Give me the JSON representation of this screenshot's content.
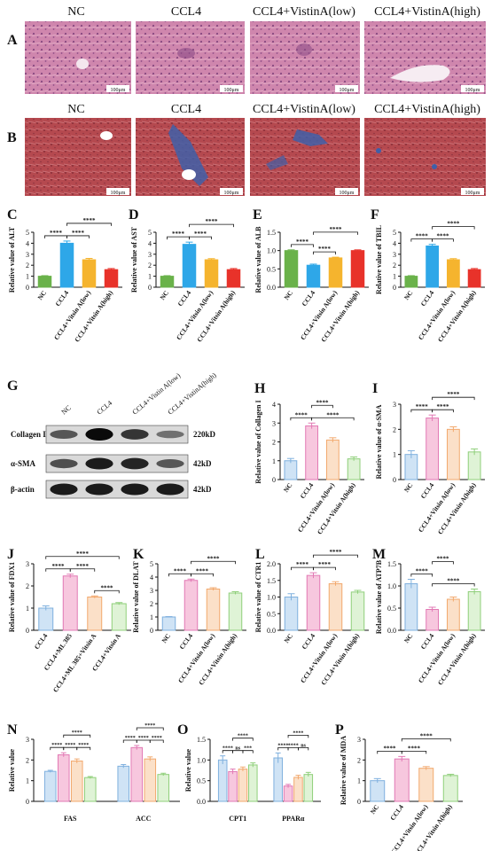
{
  "rows": {
    "A": {
      "letter": "A"
    },
    "B": {
      "letter": "B"
    },
    "micro_headers": [
      "NC",
      "CCL4",
      "CCL4+VistinA(low)",
      "CCL4+VistinA(high)"
    ],
    "scale_bar": "100μm"
  },
  "colors": {
    "he_base": "#c97aa5",
    "he_dark": "#7a3f78",
    "masson_base": "#b5494f",
    "masson_dark": "#7d2733",
    "masson_blue": "#3f5fa8",
    "green": "#6ab24a",
    "blue": "#2ea7e8",
    "yellow": "#f5b42e",
    "red": "#e8322a",
    "pink": "#f7c7de",
    "pink_edge": "#e279b4",
    "peach": "#fbe0c8",
    "peach_edge": "#f2a96e",
    "lightblue": "#cfe3f5",
    "lightblue_edge": "#7fb0de",
    "lightgreen": "#dff3d6",
    "lightgreen_edge": "#8fcf7a"
  },
  "blot": {
    "letter": "G",
    "lanes": [
      "NC",
      "CCL4",
      "CCL4+Vistin A(low)",
      "CCL4+VistinA(high)"
    ],
    "bands": [
      {
        "name": "Collagen I",
        "size": "220kD",
        "intensity": [
          0.55,
          1.0,
          0.75,
          0.4
        ]
      },
      {
        "name": "α-SMA",
        "size": "42kD",
        "intensity": [
          0.6,
          0.9,
          0.85,
          0.55
        ]
      },
      {
        "name": "β-actin",
        "size": "42kD",
        "intensity": [
          0.9,
          0.9,
          0.9,
          0.9
        ]
      }
    ]
  },
  "chart_data": [
    {
      "id": "C",
      "type": "bar",
      "ylabel": "Relative value of ALT",
      "categories": [
        "NC",
        "CCL4",
        "CCL4+Vitsin A(low)",
        "CCL4+Vitsin A(high)"
      ],
      "values": [
        1.0,
        4.0,
        2.5,
        1.6
      ],
      "errors": [
        0.05,
        0.2,
        0.12,
        0.1
      ],
      "ylim": [
        0,
        5
      ],
      "yticks": [
        0,
        1,
        2,
        3,
        4,
        5
      ],
      "style": "solid",
      "sig": [
        {
          "a": 0,
          "b": 1,
          "label": "****",
          "level": 0
        },
        {
          "a": 1,
          "b": 2,
          "label": "****",
          "level": 0
        },
        {
          "a": 1,
          "b": 3,
          "label": "****",
          "level": 1
        }
      ]
    },
    {
      "id": "D",
      "type": "bar",
      "ylabel": "Relative value of AST",
      "categories": [
        "NC",
        "CCL4",
        "CCL4+Vitsin A(low)",
        "CCL4+Vitsin A(high)"
      ],
      "values": [
        1.0,
        3.9,
        2.5,
        1.6
      ],
      "errors": [
        0.05,
        0.2,
        0.1,
        0.1
      ],
      "ylim": [
        0,
        5
      ],
      "yticks": [
        0,
        1,
        2,
        3,
        4,
        5
      ],
      "style": "solid",
      "sig": [
        {
          "a": 0,
          "b": 1,
          "label": "****",
          "level": 0
        },
        {
          "a": 1,
          "b": 2,
          "label": "****",
          "level": 0
        },
        {
          "a": 1,
          "b": 3,
          "label": "****",
          "level": 1
        }
      ]
    },
    {
      "id": "E",
      "type": "bar",
      "ylabel": "Relative value of ALB",
      "categories": [
        "NC",
        "CCL4",
        "CCL4+Vitsin A(low)",
        "CCL4+Vitsin A(high)"
      ],
      "values": [
        1.0,
        0.6,
        0.8,
        1.0
      ],
      "errors": [
        0.02,
        0.03,
        0.02,
        0.02
      ],
      "ylim": [
        0,
        1.5
      ],
      "yticks": [
        0.0,
        0.5,
        1.0,
        1.5
      ],
      "style": "solid",
      "sig": [
        {
          "a": 0,
          "b": 1,
          "label": "****",
          "level": 0
        },
        {
          "a": 1,
          "b": 2,
          "label": "****",
          "level": 0
        },
        {
          "a": 1,
          "b": 3,
          "label": "****",
          "level": 1
        }
      ]
    },
    {
      "id": "F",
      "type": "bar",
      "ylabel": "Relative value of TBIL",
      "categories": [
        "NC",
        "CCL4",
        "CCL4+Vitsin A(low)",
        "CCL4+Vitsin A(high)"
      ],
      "values": [
        1.0,
        3.75,
        2.5,
        1.6
      ],
      "errors": [
        0.05,
        0.15,
        0.1,
        0.1
      ],
      "ylim": [
        0,
        5
      ],
      "yticks": [
        0,
        1,
        2,
        3,
        4,
        5
      ],
      "style": "solid",
      "sig": [
        {
          "a": 0,
          "b": 1,
          "label": "****",
          "level": 0
        },
        {
          "a": 1,
          "b": 2,
          "label": "****",
          "level": 0
        },
        {
          "a": 1,
          "b": 3,
          "label": "****",
          "level": 1
        }
      ]
    },
    {
      "id": "H",
      "type": "bar",
      "ylabel": "Relative value of Collagen I",
      "categories": [
        "NC",
        "CCL4",
        "CCL4+Vitsin A(low)",
        "CCL4+Vitsin A(high)"
      ],
      "values": [
        1.0,
        2.85,
        2.1,
        1.1
      ],
      "errors": [
        0.12,
        0.15,
        0.12,
        0.1
      ],
      "ylim": [
        0,
        4
      ],
      "yticks": [
        0,
        1,
        2,
        3,
        4
      ],
      "style": "pastel",
      "sig": [
        {
          "a": 0,
          "b": 1,
          "label": "****",
          "level": 0
        },
        {
          "a": 1,
          "b": 3,
          "label": "****",
          "level": 0
        },
        {
          "a": 1,
          "b": 2,
          "label": "****",
          "level": 1
        }
      ]
    },
    {
      "id": "I",
      "type": "bar",
      "ylabel": "Relative value of α-SMA",
      "categories": [
        "NC",
        "CCL4",
        "CCL4+Vitsin A(low)",
        "CCL4+Vitsin A(high)"
      ],
      "values": [
        1.0,
        2.45,
        2.0,
        1.1
      ],
      "errors": [
        0.15,
        0.12,
        0.1,
        0.12
      ],
      "ylim": [
        0,
        3
      ],
      "yticks": [
        0,
        1,
        2,
        3
      ],
      "style": "pastel",
      "sig": [
        {
          "a": 0,
          "b": 1,
          "label": "****",
          "level": 0
        },
        {
          "a": 1,
          "b": 2,
          "label": "****",
          "level": 0
        },
        {
          "a": 1,
          "b": 3,
          "label": "****",
          "level": 1
        }
      ]
    },
    {
      "id": "J",
      "type": "bar",
      "ylabel": "Relative value of FDX1",
      "categories": [
        "CCL4",
        "CCL4+ML 385",
        "CCL4+ML 385+Vitsin A",
        "CCL4+Vitsin A"
      ],
      "values": [
        1.0,
        2.45,
        1.5,
        1.2
      ],
      "errors": [
        0.1,
        0.08,
        0.05,
        0.05
      ],
      "ylim": [
        0,
        3
      ],
      "yticks": [
        0,
        1,
        2,
        3
      ],
      "style": "pastel",
      "sig": [
        {
          "a": 0,
          "b": 1,
          "label": "****",
          "level": 0
        },
        {
          "a": 1,
          "b": 2,
          "label": "****",
          "level": 0
        },
        {
          "a": 2,
          "b": 3,
          "label": "****",
          "level": 0
        },
        {
          "a": 0,
          "b": 3,
          "label": "****",
          "level": 1
        }
      ]
    },
    {
      "id": "K",
      "type": "bar",
      "ylabel": "Relative value of DLAT",
      "categories": [
        "NC",
        "CCL4",
        "CCL4+Vitsin A(low)",
        "CCL4+Vitsin A(high)"
      ],
      "values": [
        1.0,
        3.75,
        3.1,
        2.8
      ],
      "errors": [
        0.03,
        0.1,
        0.1,
        0.1
      ],
      "ylim": [
        0,
        5
      ],
      "yticks": [
        0,
        1,
        2,
        3,
        4,
        5
      ],
      "style": "pastel",
      "sig": [
        {
          "a": 0,
          "b": 1,
          "label": "****",
          "level": 0
        },
        {
          "a": 1,
          "b": 2,
          "label": "****",
          "level": 0
        },
        {
          "a": 1,
          "b": 3,
          "label": "****",
          "level": 1
        }
      ]
    },
    {
      "id": "L",
      "type": "bar",
      "ylabel": "Relative value of CTR1",
      "categories": [
        "NC",
        "CCL4",
        "CCL4+Vitsin A(low)",
        "CCL4+Vitsin A(high)"
      ],
      "values": [
        1.0,
        1.65,
        1.4,
        1.15
      ],
      "errors": [
        0.1,
        0.08,
        0.06,
        0.05
      ],
      "ylim": [
        0,
        2.0
      ],
      "yticks": [
        0.0,
        0.5,
        1.0,
        1.5,
        2.0
      ],
      "style": "pastel",
      "sig": [
        {
          "a": 0,
          "b": 1,
          "label": "****",
          "level": 0
        },
        {
          "a": 1,
          "b": 2,
          "label": "****",
          "level": 0
        },
        {
          "a": 1,
          "b": 3,
          "label": "****",
          "level": 1
        }
      ]
    },
    {
      "id": "M",
      "type": "bar",
      "ylabel": "Relative value of ATP7B",
      "categories": [
        "NC",
        "CCL4",
        "CCL4+Vitsin A(low)",
        "CCL4+Vitsin A(high)"
      ],
      "values": [
        1.05,
        0.47,
        0.7,
        0.87
      ],
      "errors": [
        0.1,
        0.05,
        0.05,
        0.06
      ],
      "ylim": [
        0,
        1.5
      ],
      "yticks": [
        0.0,
        0.5,
        1.0,
        1.5
      ],
      "style": "pastel",
      "sig": [
        {
          "a": 0,
          "b": 1,
          "label": "****",
          "level": 0
        },
        {
          "a": 1,
          "b": 3,
          "label": "****",
          "level": 0
        },
        {
          "a": 1,
          "b": 2,
          "label": "****",
          "level": 1
        }
      ]
    },
    {
      "id": "N",
      "type": "grouped_bar",
      "ylabel": "Relative value",
      "categories": [
        "FAS",
        "ACC"
      ],
      "values": [
        [
          1.45,
          2.25,
          1.95,
          1.15
        ],
        [
          1.7,
          2.6,
          2.05,
          1.3
        ]
      ],
      "errors": [
        [
          0.05,
          0.1,
          0.1,
          0.05
        ],
        [
          0.08,
          0.1,
          0.1,
          0.06
        ]
      ],
      "ylim": [
        0,
        3
      ],
      "yticks": [
        0,
        1,
        2,
        3
      ],
      "style": "pastel",
      "sig": [
        {
          "g": 0,
          "a": 0,
          "b": 1,
          "label": "****",
          "level": 0
        },
        {
          "g": 0,
          "a": 1,
          "b": 2,
          "label": "****",
          "level": 0
        },
        {
          "g": 0,
          "a": 2,
          "b": 3,
          "label": "****",
          "level": 0
        },
        {
          "g": 0,
          "a": 1,
          "b": 3,
          "label": "****",
          "level": 1
        },
        {
          "g": 1,
          "a": 0,
          "b": 1,
          "label": "****",
          "level": 0
        },
        {
          "g": 1,
          "a": 1,
          "b": 2,
          "label": "****",
          "level": 0
        },
        {
          "g": 1,
          "a": 2,
          "b": 3,
          "label": "****",
          "level": 0
        },
        {
          "g": 1,
          "a": 1,
          "b": 3,
          "label": "****",
          "level": 1
        }
      ]
    },
    {
      "id": "O",
      "type": "grouped_bar",
      "ylabel": "Relative value",
      "categories": [
        "CPT1",
        "PPARα"
      ],
      "values": [
        [
          1.0,
          0.72,
          0.78,
          0.88
        ],
        [
          1.05,
          0.37,
          0.58,
          0.65
        ]
      ],
      "errors": [
        [
          0.1,
          0.06,
          0.05,
          0.05
        ],
        [
          0.12,
          0.04,
          0.05,
          0.05
        ]
      ],
      "ylim": [
        0,
        1.5
      ],
      "yticks": [
        0.0,
        0.5,
        1.0,
        1.5
      ],
      "style": "pastel",
      "sig": [
        {
          "g": 0,
          "a": 0,
          "b": 1,
          "label": "****",
          "level": 0
        },
        {
          "g": 0,
          "a": 1,
          "b": 2,
          "label": "ns",
          "level": 0
        },
        {
          "g": 0,
          "a": 2,
          "b": 3,
          "label": "***",
          "level": 0
        },
        {
          "g": 0,
          "a": 1,
          "b": 3,
          "label": "****",
          "level": 1
        },
        {
          "g": 1,
          "a": 0,
          "b": 1,
          "label": "****",
          "level": 0
        },
        {
          "g": 1,
          "a": 1,
          "b": 2,
          "label": "****",
          "level": 0
        },
        {
          "g": 1,
          "a": 2,
          "b": 3,
          "label": "ns",
          "level": 0
        },
        {
          "g": 1,
          "a": 1,
          "b": 3,
          "label": "****",
          "level": 1
        }
      ]
    },
    {
      "id": "P",
      "type": "bar",
      "ylabel": "Relative value of MDA",
      "categories": [
        "NC",
        "CCL4",
        "CCL4+Vitsin A(low)",
        "CCL4+Vitsin A(high)"
      ],
      "values": [
        1.0,
        2.05,
        1.6,
        1.25
      ],
      "errors": [
        0.1,
        0.12,
        0.08,
        0.06
      ],
      "ylim": [
        0,
        3
      ],
      "yticks": [
        0,
        1,
        2,
        3
      ],
      "style": "pastel",
      "sig": [
        {
          "a": 0,
          "b": 1,
          "label": "****",
          "level": 0
        },
        {
          "a": 1,
          "b": 2,
          "label": "****",
          "level": 0
        },
        {
          "a": 1,
          "b": 3,
          "label": "****",
          "level": 1
        }
      ]
    }
  ]
}
